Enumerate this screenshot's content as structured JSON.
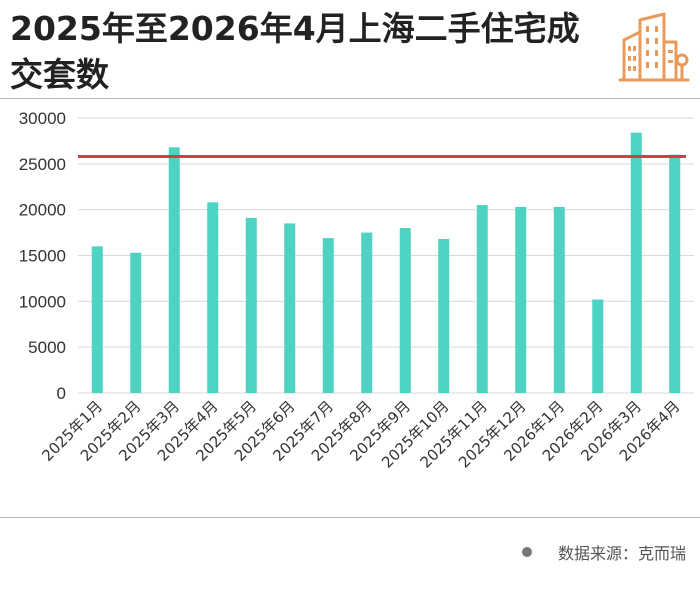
{
  "title": "2025年至2026年4月上海二手住宅成交套数",
  "source": "数据来源：克而瑞",
  "icon": "building-icon",
  "colors": {
    "bar": "#4ed2c2",
    "reference_line": "#d63b4a",
    "icon": "#e89a5a",
    "text": "#222222"
  },
  "chart_data": {
    "type": "bar",
    "categories": [
      "2025年1月",
      "2025年2月",
      "2025年3月",
      "2025年4月",
      "2025年5月",
      "2025年6月",
      "2025年7月",
      "2025年8月",
      "2025年9月",
      "2025年10月",
      "2025年11月",
      "2025年12月",
      "2026年1月",
      "2026年2月",
      "2026年3月",
      "2026年4月"
    ],
    "values": [
      16000,
      15300,
      26800,
      20800,
      19100,
      18500,
      16900,
      17500,
      18000,
      16800,
      20500,
      20300,
      20300,
      10200,
      28400,
      26000
    ],
    "reference_line": 25800,
    "ylim": [
      0,
      30000
    ],
    "yticks": [
      0,
      5000,
      10000,
      15000,
      20000,
      25000,
      30000
    ],
    "grid": "horizontal",
    "legend": "none"
  }
}
